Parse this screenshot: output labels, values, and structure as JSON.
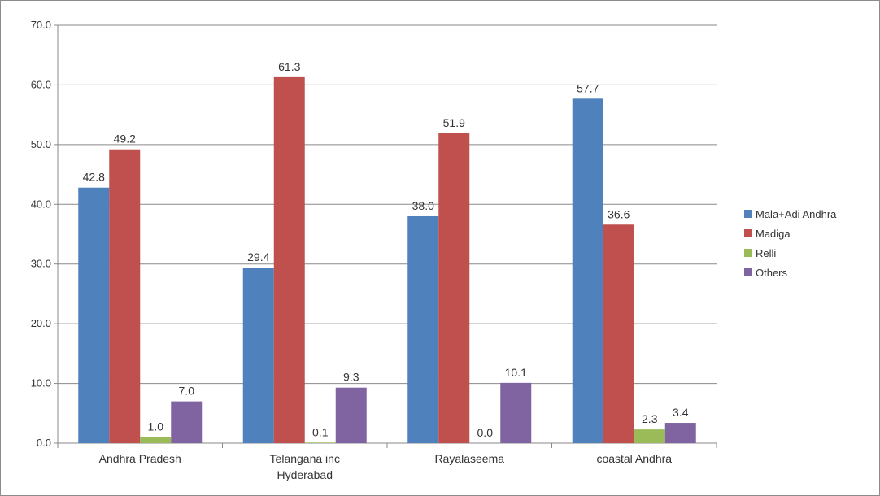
{
  "chart_data": {
    "type": "bar",
    "categories": [
      [
        "Andhra Pradesh"
      ],
      [
        "Telangana inc",
        "Hyderabad"
      ],
      [
        "Rayalaseema"
      ],
      [
        "coastal Andhra"
      ]
    ],
    "series": [
      {
        "name": "Mala+Adi Andhra",
        "color": "#4f81bd",
        "values": [
          42.8,
          29.4,
          38.0,
          57.7
        ]
      },
      {
        "name": "Madiga",
        "color": "#c0504d",
        "values": [
          49.2,
          61.3,
          51.9,
          36.6
        ]
      },
      {
        "name": "Relli",
        "color": "#9bbb59",
        "values": [
          1.0,
          0.1,
          0.0,
          2.3
        ]
      },
      {
        "name": "Others",
        "color": "#8064a2",
        "values": [
          7.0,
          9.3,
          10.1,
          3.4
        ]
      }
    ],
    "data_labels": [
      [
        "42.8",
        "49.2",
        "1.0",
        "7.0"
      ],
      [
        "29.4",
        "61.3",
        "0.1",
        "9.3"
      ],
      [
        "38.0",
        "51.9",
        "0.0",
        "10.1"
      ],
      [
        "57.7",
        "36.6",
        "2.3",
        "3.4"
      ]
    ],
    "y_ticks": [
      "0.0",
      "10.0",
      "20.0",
      "30.0",
      "40.0",
      "50.0",
      "60.0",
      "70.0"
    ],
    "ylim": [
      0,
      70
    ],
    "grid": true,
    "legend_position": "right"
  }
}
